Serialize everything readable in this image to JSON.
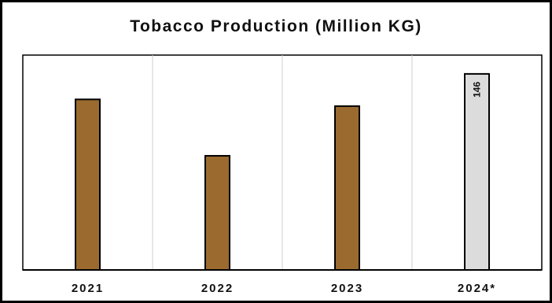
{
  "chart_data": {
    "type": "bar",
    "title": "Tobacco Production (Million KG)",
    "xlabel": "",
    "ylabel": "",
    "categories": [
      "2021",
      "2022",
      "2023",
      "2024*"
    ],
    "values": [
      127,
      85,
      122,
      146
    ],
    "data_labels": [
      "",
      "",
      "",
      "146"
    ],
    "bar_colors": [
      "#9b6a2f",
      "#9b6a2f",
      "#9b6a2f",
      "#dcdcdc"
    ],
    "ylim": [
      0,
      160
    ],
    "grid": "vertical separators between categories",
    "legend": "none"
  }
}
